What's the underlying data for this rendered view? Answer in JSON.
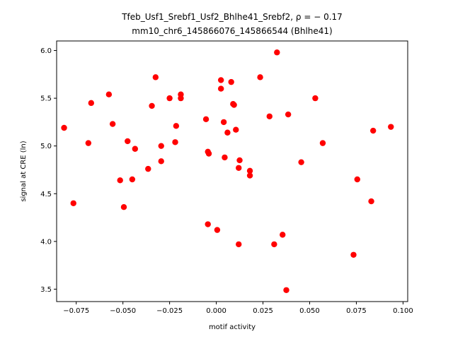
{
  "chart_data": {
    "type": "scatter",
    "title_line1": "Tfeb_Usf1_Srebf1_Usf2_Bhlhe41_Srebf2, ρ = − 0.17",
    "title_line2": "mm10_chr6_145866076_145866544 (Bhlhe41)",
    "xlabel": "motif activity",
    "ylabel": "signal at CRE (ln)",
    "xlim": [
      -0.0855,
      0.1025
    ],
    "ylim": [
      3.37,
      6.1
    ],
    "x_ticks": [
      -0.075,
      -0.05,
      -0.025,
      0.0,
      0.025,
      0.05,
      0.075,
      0.1
    ],
    "x_tick_labels": [
      "−0.075",
      "−0.050",
      "−0.025",
      "0.000",
      "0.025",
      "0.050",
      "0.075",
      "0.100"
    ],
    "y_ticks": [
      3.5,
      4.0,
      4.5,
      5.0,
      5.5,
      6.0
    ],
    "y_tick_labels": [
      "3.5",
      "4.0",
      "4.5",
      "5.0",
      "5.5",
      "6.0"
    ],
    "grid": false,
    "marker_color": "#ff0000",
    "points": [
      [
        -0.0815,
        5.19
      ],
      [
        -0.0765,
        4.4
      ],
      [
        -0.0685,
        5.03
      ],
      [
        -0.067,
        5.45
      ],
      [
        -0.0575,
        5.54
      ],
      [
        -0.0555,
        5.23
      ],
      [
        -0.0515,
        4.64
      ],
      [
        -0.0495,
        4.36
      ],
      [
        -0.0475,
        5.05
      ],
      [
        -0.045,
        4.65
      ],
      [
        -0.0435,
        4.97
      ],
      [
        -0.0365,
        4.76
      ],
      [
        -0.0345,
        5.42
      ],
      [
        -0.0325,
        5.72
      ],
      [
        -0.0295,
        5.0
      ],
      [
        -0.0295,
        4.84
      ],
      [
        -0.025,
        5.5
      ],
      [
        -0.022,
        5.04
      ],
      [
        -0.0215,
        5.21
      ],
      [
        -0.019,
        5.54
      ],
      [
        -0.019,
        5.5
      ],
      [
        -0.0055,
        5.28
      ],
      [
        -0.0045,
        4.94
      ],
      [
        -0.004,
        4.92
      ],
      [
        -0.0045,
        4.18
      ],
      [
        0.0005,
        4.12
      ],
      [
        0.0025,
        5.69
      ],
      [
        0.0025,
        5.6
      ],
      [
        0.004,
        5.25
      ],
      [
        0.0045,
        4.88
      ],
      [
        0.006,
        5.14
      ],
      [
        0.008,
        5.67
      ],
      [
        0.009,
        5.44
      ],
      [
        0.0095,
        5.43
      ],
      [
        0.0105,
        5.17
      ],
      [
        0.012,
        4.77
      ],
      [
        0.0125,
        4.85
      ],
      [
        0.012,
        3.97
      ],
      [
        0.018,
        4.74
      ],
      [
        0.018,
        4.69
      ],
      [
        0.0235,
        5.72
      ],
      [
        0.0285,
        5.31
      ],
      [
        0.031,
        3.97
      ],
      [
        0.0325,
        5.98
      ],
      [
        0.0355,
        4.07
      ],
      [
        0.0375,
        3.49
      ],
      [
        0.0385,
        5.33
      ],
      [
        0.0455,
        4.83
      ],
      [
        0.053,
        5.5
      ],
      [
        0.057,
        5.03
      ],
      [
        0.0735,
        3.86
      ],
      [
        0.0755,
        4.65
      ],
      [
        0.083,
        4.42
      ],
      [
        0.084,
        5.16
      ],
      [
        0.0935,
        5.2
      ]
    ]
  }
}
